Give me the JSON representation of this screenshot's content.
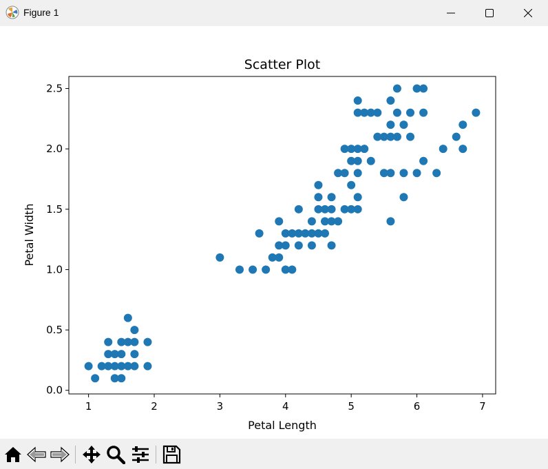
{
  "window": {
    "title": "Figure 1",
    "app_icon": "matplotlib-logo-icon",
    "buttons": [
      "minimize-icon",
      "maximize-icon",
      "close-icon"
    ]
  },
  "toolbar": {
    "icons": [
      "home-icon",
      "back-arrow-icon",
      "forward-arrow-icon",
      "pan-move-icon",
      "zoom-magnifier-icon",
      "configure-subplots-icon",
      "save-floppy-icon"
    ]
  },
  "chart_data": {
    "type": "scatter",
    "title": "Scatter Plot",
    "xlabel": "Petal Length",
    "ylabel": "Petal Width",
    "xlim": [
      0.7,
      7.2
    ],
    "ylim": [
      -0.03,
      2.6
    ],
    "xticks": [
      1,
      2,
      3,
      4,
      5,
      6,
      7
    ],
    "xtick_labels": [
      "1",
      "2",
      "3",
      "4",
      "5",
      "6",
      "7"
    ],
    "yticks": [
      0.0,
      0.5,
      1.0,
      1.5,
      2.0,
      2.5
    ],
    "ytick_labels": [
      "0.0",
      "0.5",
      "1.0",
      "1.5",
      "2.0",
      "2.5"
    ],
    "grid": false,
    "marker_color": "#1f77b4",
    "points": [
      [
        1.0,
        0.2
      ],
      [
        1.1,
        0.1
      ],
      [
        1.2,
        0.2
      ],
      [
        1.3,
        0.2
      ],
      [
        1.3,
        0.3
      ],
      [
        1.3,
        0.4
      ],
      [
        1.4,
        0.1
      ],
      [
        1.4,
        0.2
      ],
      [
        1.4,
        0.3
      ],
      [
        1.5,
        0.1
      ],
      [
        1.5,
        0.2
      ],
      [
        1.5,
        0.3
      ],
      [
        1.5,
        0.4
      ],
      [
        1.6,
        0.2
      ],
      [
        1.6,
        0.4
      ],
      [
        1.6,
        0.6
      ],
      [
        1.7,
        0.2
      ],
      [
        1.7,
        0.3
      ],
      [
        1.7,
        0.4
      ],
      [
        1.7,
        0.5
      ],
      [
        1.9,
        0.2
      ],
      [
        1.9,
        0.4
      ],
      [
        3.0,
        1.1
      ],
      [
        3.3,
        1.0
      ],
      [
        3.5,
        1.0
      ],
      [
        3.6,
        1.3
      ],
      [
        3.7,
        1.0
      ],
      [
        3.8,
        1.1
      ],
      [
        3.9,
        1.1
      ],
      [
        3.9,
        1.2
      ],
      [
        3.9,
        1.4
      ],
      [
        4.0,
        1.0
      ],
      [
        4.0,
        1.2
      ],
      [
        4.0,
        1.3
      ],
      [
        4.1,
        1.0
      ],
      [
        4.1,
        1.3
      ],
      [
        4.2,
        1.2
      ],
      [
        4.2,
        1.3
      ],
      [
        4.2,
        1.5
      ],
      [
        4.3,
        1.3
      ],
      [
        4.4,
        1.2
      ],
      [
        4.4,
        1.3
      ],
      [
        4.4,
        1.4
      ],
      [
        4.5,
        1.3
      ],
      [
        4.5,
        1.5
      ],
      [
        4.5,
        1.6
      ],
      [
        4.5,
        1.7
      ],
      [
        4.6,
        1.3
      ],
      [
        4.6,
        1.4
      ],
      [
        4.6,
        1.5
      ],
      [
        4.7,
        1.2
      ],
      [
        4.7,
        1.4
      ],
      [
        4.7,
        1.5
      ],
      [
        4.7,
        1.6
      ],
      [
        4.8,
        1.4
      ],
      [
        4.8,
        1.8
      ],
      [
        4.9,
        1.5
      ],
      [
        4.9,
        1.8
      ],
      [
        4.9,
        2.0
      ],
      [
        5.0,
        1.5
      ],
      [
        5.0,
        1.7
      ],
      [
        5.0,
        1.9
      ],
      [
        5.0,
        2.0
      ],
      [
        5.1,
        1.5
      ],
      [
        5.1,
        1.6
      ],
      [
        5.1,
        1.8
      ],
      [
        5.1,
        1.9
      ],
      [
        5.1,
        2.0
      ],
      [
        5.1,
        2.3
      ],
      [
        5.1,
        2.4
      ],
      [
        5.2,
        2.0
      ],
      [
        5.2,
        2.3
      ],
      [
        5.3,
        1.9
      ],
      [
        5.3,
        2.3
      ],
      [
        5.4,
        2.1
      ],
      [
        5.4,
        2.3
      ],
      [
        5.5,
        1.8
      ],
      [
        5.5,
        2.1
      ],
      [
        5.6,
        1.4
      ],
      [
        5.6,
        1.8
      ],
      [
        5.6,
        2.1
      ],
      [
        5.6,
        2.2
      ],
      [
        5.6,
        2.4
      ],
      [
        5.7,
        2.1
      ],
      [
        5.7,
        2.3
      ],
      [
        5.7,
        2.5
      ],
      [
        5.8,
        1.6
      ],
      [
        5.8,
        1.8
      ],
      [
        5.8,
        2.2
      ],
      [
        5.9,
        2.1
      ],
      [
        5.9,
        2.3
      ],
      [
        6.0,
        1.8
      ],
      [
        6.0,
        2.5
      ],
      [
        6.1,
        1.9
      ],
      [
        6.1,
        2.3
      ],
      [
        6.1,
        2.5
      ],
      [
        6.3,
        1.8
      ],
      [
        6.4,
        2.0
      ],
      [
        6.6,
        2.1
      ],
      [
        6.7,
        2.0
      ],
      [
        6.7,
        2.2
      ],
      [
        6.9,
        2.3
      ]
    ]
  }
}
